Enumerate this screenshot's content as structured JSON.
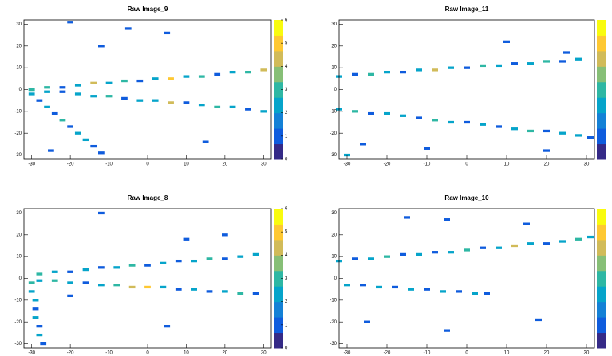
{
  "chart_data": [
    {
      "type": "heatmap",
      "title": "Raw Image_9",
      "xlim": [
        -32,
        32
      ],
      "ylim": [
        -32,
        32
      ],
      "zlim": [
        0,
        6
      ],
      "xticks": [
        -30,
        -20,
        -10,
        0,
        10,
        20,
        30
      ],
      "yticks": [
        -30,
        -20,
        -10,
        0,
        10,
        20,
        30
      ],
      "zticks": [
        0,
        1,
        2,
        3,
        4,
        5,
        6
      ],
      "colors": [
        "#352a87",
        "#0f5cdd",
        "#1481d6",
        "#06a4ca",
        "#2eb7a4",
        "#87bf77",
        "#d1bb59",
        "#fec832",
        "#f9fb0e"
      ],
      "x": [
        -30,
        -26,
        -22,
        -18,
        -14,
        -10,
        -6,
        -2,
        2,
        6,
        10,
        14,
        18,
        22,
        26,
        30,
        -30,
        -26,
        -22,
        -18,
        -14,
        -10,
        -6,
        -2,
        2,
        6,
        10,
        14,
        18,
        22,
        26,
        30,
        -30,
        -28,
        -26,
        -24,
        -22,
        -20,
        -18,
        -16,
        -14,
        -12,
        -20,
        -5,
        -12,
        5,
        15,
        -25
      ],
      "y": [
        0,
        1,
        1,
        2,
        3,
        3,
        4,
        4,
        5,
        5,
        6,
        6,
        7,
        8,
        8,
        9,
        0,
        -1,
        -1,
        -2,
        -3,
        -3,
        -4,
        -5,
        -5,
        -6,
        -6,
        -7,
        -8,
        -8,
        -9,
        -10,
        -2,
        -5,
        -8,
        -11,
        -14,
        -17,
        -20,
        -23,
        -26,
        -29,
        31,
        28,
        20,
        26,
        -24,
        -28
      ],
      "values": [
        2,
        3,
        1,
        2,
        4,
        2,
        3,
        1,
        2,
        5,
        2,
        3,
        1,
        2,
        3,
        4,
        3,
        2,
        1,
        2,
        2,
        3,
        1,
        2,
        2,
        4,
        1,
        2,
        3,
        2,
        1,
        2,
        2,
        1,
        2,
        1,
        3,
        1,
        2,
        2,
        1,
        1,
        1,
        1,
        1,
        1,
        1,
        1
      ]
    },
    {
      "type": "heatmap",
      "title": "Raw Image_11",
      "xlim": [
        -32,
        32
      ],
      "ylim": [
        -32,
        32
      ],
      "zlim": [
        0,
        6
      ],
      "xticks": [
        -30,
        -20,
        -10,
        0,
        10,
        20,
        30
      ],
      "yticks": [
        -30,
        -20,
        -10,
        0,
        10,
        20,
        30
      ],
      "colors": [
        "#352a87",
        "#0f5cdd",
        "#1481d6",
        "#06a4ca",
        "#2eb7a4",
        "#87bf77",
        "#d1bb59",
        "#fec832",
        "#f9fb0e"
      ],
      "x": [
        -32,
        -28,
        -24,
        -20,
        -16,
        -12,
        -8,
        -4,
        0,
        4,
        8,
        12,
        16,
        20,
        24,
        28,
        -32,
        -28,
        -24,
        -20,
        -16,
        -12,
        -8,
        -4,
        0,
        4,
        8,
        12,
        16,
        20,
        24,
        28,
        31,
        -30,
        -26,
        -10,
        20,
        10,
        25
      ],
      "y": [
        6,
        7,
        7,
        8,
        8,
        9,
        9,
        10,
        10,
        11,
        11,
        12,
        12,
        13,
        13,
        14,
        -9,
        -10,
        -11,
        -11,
        -12,
        -13,
        -14,
        -15,
        -15,
        -16,
        -17,
        -18,
        -19,
        -19,
        -20,
        -21,
        -22,
        -30,
        -25,
        -27,
        -28,
        22,
        17
      ],
      "values": [
        2,
        1,
        3,
        2,
        1,
        2,
        4,
        2,
        1,
        3,
        2,
        1,
        2,
        3,
        1,
        2,
        2,
        3,
        1,
        2,
        2,
        1,
        3,
        2,
        1,
        2,
        1,
        2,
        3,
        1,
        2,
        2,
        1,
        2,
        1,
        1,
        1,
        1,
        1
      ]
    },
    {
      "type": "heatmap",
      "title": "Raw Image_8",
      "xlim": [
        -32,
        32
      ],
      "ylim": [
        -32,
        32
      ],
      "zlim": [
        0,
        6
      ],
      "xticks": [
        -30,
        -20,
        -10,
        0,
        10,
        20,
        30
      ],
      "yticks": [
        -30,
        -20,
        -10,
        0,
        10,
        20,
        30
      ],
      "zticks": [
        0,
        1,
        2,
        3,
        4,
        5,
        6
      ],
      "colors": [
        "#352a87",
        "#0f5cdd",
        "#1481d6",
        "#06a4ca",
        "#2eb7a4",
        "#87bf77",
        "#d1bb59",
        "#fec832",
        "#f9fb0e"
      ],
      "x": [
        -28,
        -24,
        -20,
        -16,
        -12,
        -8,
        -4,
        0,
        4,
        8,
        12,
        16,
        20,
        24,
        28,
        -28,
        -24,
        -20,
        -16,
        -12,
        -8,
        -4,
        0,
        4,
        8,
        12,
        16,
        20,
        24,
        28,
        -30,
        -30,
        -29,
        -29,
        -29,
        -28,
        -28,
        -27,
        -12,
        10,
        20,
        -20,
        5
      ],
      "y": [
        2,
        3,
        3,
        4,
        5,
        5,
        6,
        6,
        7,
        8,
        8,
        9,
        9,
        10,
        11,
        -1,
        -1,
        -2,
        -2,
        -3,
        -3,
        -4,
        -4,
        -4,
        -5,
        -5,
        -6,
        -6,
        -7,
        -7,
        -2,
        -6,
        -10,
        -14,
        -18,
        -22,
        -26,
        -30,
        30,
        18,
        20,
        -8,
        -22
      ],
      "values": [
        3,
        2,
        1,
        2,
        1,
        2,
        3,
        1,
        2,
        1,
        2,
        3,
        1,
        2,
        2,
        2,
        3,
        2,
        1,
        2,
        3,
        4,
        5,
        2,
        1,
        2,
        1,
        2,
        3,
        1,
        3,
        2,
        2,
        1,
        2,
        1,
        2,
        1,
        1,
        1,
        1,
        1,
        1
      ]
    },
    {
      "type": "heatmap",
      "title": "Raw Image_10",
      "xlim": [
        -32,
        32
      ],
      "ylim": [
        -32,
        32
      ],
      "zlim": [
        0,
        6
      ],
      "xticks": [
        -30,
        -20,
        -10,
        0,
        10,
        20,
        30
      ],
      "yticks": [
        -30,
        -20,
        -10,
        0,
        10,
        20,
        30
      ],
      "colors": [
        "#352a87",
        "#0f5cdd",
        "#1481d6",
        "#06a4ca",
        "#2eb7a4",
        "#87bf77",
        "#d1bb59",
        "#fec832",
        "#f9fb0e"
      ],
      "x": [
        -32,
        -28,
        -24,
        -20,
        -16,
        -12,
        -8,
        -4,
        0,
        4,
        8,
        12,
        16,
        20,
        24,
        28,
        31,
        -30,
        -26,
        -22,
        -18,
        -14,
        -10,
        -6,
        -2,
        2,
        5,
        -15,
        -5,
        15,
        -25,
        -5,
        18
      ],
      "y": [
        8,
        9,
        9,
        10,
        11,
        11,
        12,
        12,
        13,
        14,
        14,
        15,
        16,
        16,
        17,
        18,
        19,
        -3,
        -3,
        -4,
        -4,
        -5,
        -5,
        -6,
        -6,
        -7,
        -7,
        28,
        27,
        25,
        -20,
        -24,
        -19
      ],
      "values": [
        2,
        1,
        2,
        3,
        1,
        2,
        1,
        2,
        3,
        1,
        2,
        4,
        2,
        1,
        2,
        3,
        2,
        2,
        1,
        2,
        1,
        2,
        1,
        2,
        1,
        2,
        1,
        1,
        1,
        1,
        1,
        1,
        1
      ]
    }
  ]
}
